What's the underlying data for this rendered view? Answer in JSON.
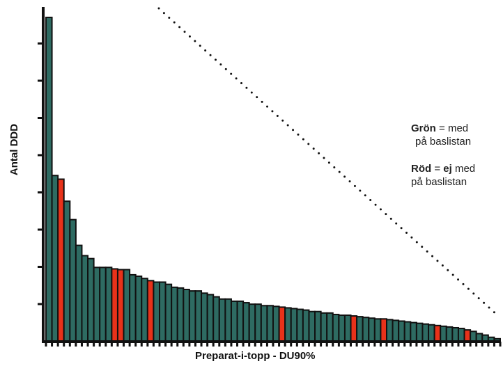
{
  "chart_data": {
    "type": "bar",
    "xlabel": "Preparat-i-topp - DU90%",
    "ylabel": "Antal DDD",
    "colors": {
      "green": "#2e6b62",
      "red": "#e8321a",
      "outline": "#111111"
    },
    "values": [
      440,
      225,
      220,
      190,
      165,
      130,
      116,
      112,
      100,
      100,
      100,
      98,
      97,
      97,
      90,
      88,
      85,
      82,
      80,
      80,
      77,
      73,
      72,
      70,
      68,
      68,
      65,
      63,
      60,
      57,
      57,
      54,
      54,
      52,
      50,
      50,
      48,
      48,
      47,
      46,
      45,
      44,
      43,
      42,
      40,
      40,
      38,
      38,
      36,
      35,
      35,
      34,
      33,
      32,
      31,
      30,
      30,
      29,
      28,
      27,
      26,
      25,
      24,
      23,
      22,
      21,
      20,
      19,
      18,
      17,
      15,
      13,
      10,
      8,
      5,
      3
    ],
    "series_colors": [
      "g",
      "g",
      "r",
      "g",
      "g",
      "g",
      "g",
      "g",
      "g",
      "g",
      "g",
      "r",
      "r",
      "g",
      "g",
      "g",
      "g",
      "r",
      "g",
      "g",
      "g",
      "g",
      "g",
      "g",
      "g",
      "g",
      "g",
      "g",
      "g",
      "g",
      "g",
      "g",
      "g",
      "g",
      "g",
      "g",
      "g",
      "g",
      "g",
      "r",
      "g",
      "g",
      "g",
      "g",
      "g",
      "g",
      "g",
      "g",
      "g",
      "g",
      "g",
      "r",
      "g",
      "g",
      "g",
      "g",
      "r",
      "g",
      "g",
      "g",
      "g",
      "g",
      "g",
      "g",
      "g",
      "r",
      "g",
      "g",
      "g",
      "g",
      "r",
      "g",
      "g",
      "g",
      "g",
      "g"
    ],
    "trend_line": "dotted"
  },
  "legend": {
    "green_word": "Grön",
    "green_rest": "= med",
    "green_line2": "på baslistan",
    "red_word": "Röd",
    "red_eq": "=",
    "red_ej": "ej",
    "red_rest": "med",
    "red_line2": "på baslistan"
  }
}
